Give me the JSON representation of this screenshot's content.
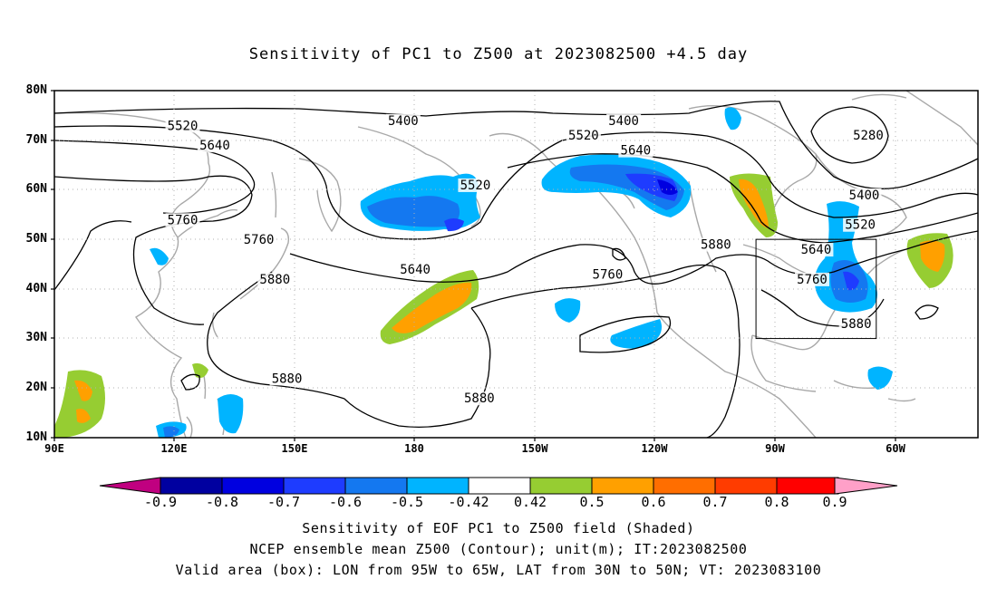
{
  "title": "Sensitivity of PC1 to Z500 at 2023082500 +4.5 day",
  "axes": {
    "lat_labels": [
      "80N",
      "70N",
      "60N",
      "50N",
      "40N",
      "30N",
      "20N",
      "10N"
    ],
    "lon_labels": [
      "90E",
      "120E",
      "150E",
      "180",
      "150W",
      "120W",
      "90W",
      "60W"
    ]
  },
  "contours": {
    "labels": [
      {
        "text": "5400",
        "lon": 177,
        "lat": 74
      },
      {
        "text": "5400",
        "lon": -128,
        "lat": 74
      },
      {
        "text": "5400",
        "lon": -68,
        "lat": 59
      },
      {
        "text": "5520",
        "lon": 122,
        "lat": 73
      },
      {
        "text": "5520",
        "lon": -138,
        "lat": 71
      },
      {
        "text": "5520",
        "lon": -165,
        "lat": 61
      },
      {
        "text": "5520",
        "lon": -69,
        "lat": 53
      },
      {
        "text": "5640",
        "lon": 130,
        "lat": 69
      },
      {
        "text": "5640",
        "lon": -125,
        "lat": 68
      },
      {
        "text": "5640",
        "lon": -180,
        "lat": 44
      },
      {
        "text": "5640",
        "lon": -80,
        "lat": 48
      },
      {
        "text": "5760",
        "lon": 122,
        "lat": 54
      },
      {
        "text": "5760",
        "lon": 141,
        "lat": 50
      },
      {
        "text": "5760",
        "lon": -132,
        "lat": 43
      },
      {
        "text": "5760",
        "lon": -81,
        "lat": 42
      },
      {
        "text": "5880",
        "lon": 145,
        "lat": 42
      },
      {
        "text": "5880",
        "lon": 148,
        "lat": 22
      },
      {
        "text": "5880",
        "lon": -164,
        "lat": 18
      },
      {
        "text": "5880",
        "lon": -105,
        "lat": 49
      },
      {
        "text": "5880",
        "lon": -70,
        "lat": 33
      },
      {
        "text": "5280",
        "lon": -67,
        "lat": 71
      }
    ]
  },
  "colorbar": {
    "labels": [
      "-0.9",
      "-0.8",
      "-0.7",
      "-0.6",
      "-0.5",
      "-0.42",
      "0.42",
      "0.5",
      "0.6",
      "0.7",
      "0.8",
      "0.9"
    ],
    "colors": [
      "#c00080",
      "#0000a0",
      "#0000e0",
      "#1e3cff",
      "#1478f0",
      "#00b4ff",
      "#ffffff",
      "#96cd32",
      "#ffa000",
      "#ff6e00",
      "#ff3c00",
      "#ff0000",
      "#ffa0c8"
    ]
  },
  "valid_box": {
    "lon_min": -95,
    "lon_max": -65,
    "lat_min": 30,
    "lat_max": 50
  },
  "captions": [
    "Sensitivity of EOF PC1 to Z500 field (Shaded)",
    "NCEP ensemble mean Z500 (Contour); unit(m); IT:2023082500",
    "Valid area (box): LON from 95W to 65W, LAT from 30N to 50N; VT: 2023083100"
  ]
}
